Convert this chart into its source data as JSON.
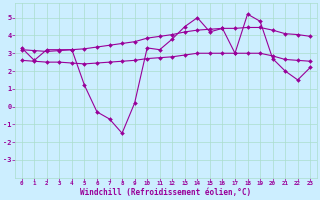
{
  "xlabel": "Windchill (Refroidissement éolien,°C)",
  "x_hours": [
    0,
    1,
    2,
    3,
    4,
    5,
    6,
    7,
    8,
    9,
    10,
    11,
    12,
    13,
    14,
    15,
    16,
    17,
    18,
    19,
    20,
    21,
    22,
    23
  ],
  "upper": [
    3.2,
    3.15,
    3.1,
    3.15,
    3.2,
    3.25,
    3.35,
    3.45,
    3.55,
    3.65,
    3.85,
    3.95,
    4.05,
    4.2,
    4.3,
    4.35,
    4.4,
    4.4,
    4.45,
    4.45,
    4.3,
    4.1,
    4.05,
    3.95
  ],
  "lower": [
    2.6,
    2.55,
    2.5,
    2.5,
    2.45,
    2.4,
    2.45,
    2.5,
    2.55,
    2.6,
    2.7,
    2.75,
    2.8,
    2.9,
    3.0,
    3.0,
    3.0,
    3.0,
    3.0,
    3.0,
    2.85,
    2.65,
    2.6,
    2.55
  ],
  "actual": [
    3.3,
    2.6,
    3.2,
    3.2,
    3.2,
    1.2,
    -0.3,
    -0.7,
    -1.5,
    0.2,
    3.3,
    3.2,
    3.8,
    4.5,
    5.0,
    4.2,
    4.4,
    3.0,
    5.2,
    4.8,
    2.7,
    2.0,
    1.5,
    2.2
  ],
  "color_line": "#990099",
  "bg_color": "#cceeff",
  "grid_color": "#aaddcc",
  "ylim": [
    -4.0,
    5.8
  ],
  "yticks": [
    -3,
    -2,
    -1,
    0,
    1,
    2,
    3,
    4,
    5
  ]
}
